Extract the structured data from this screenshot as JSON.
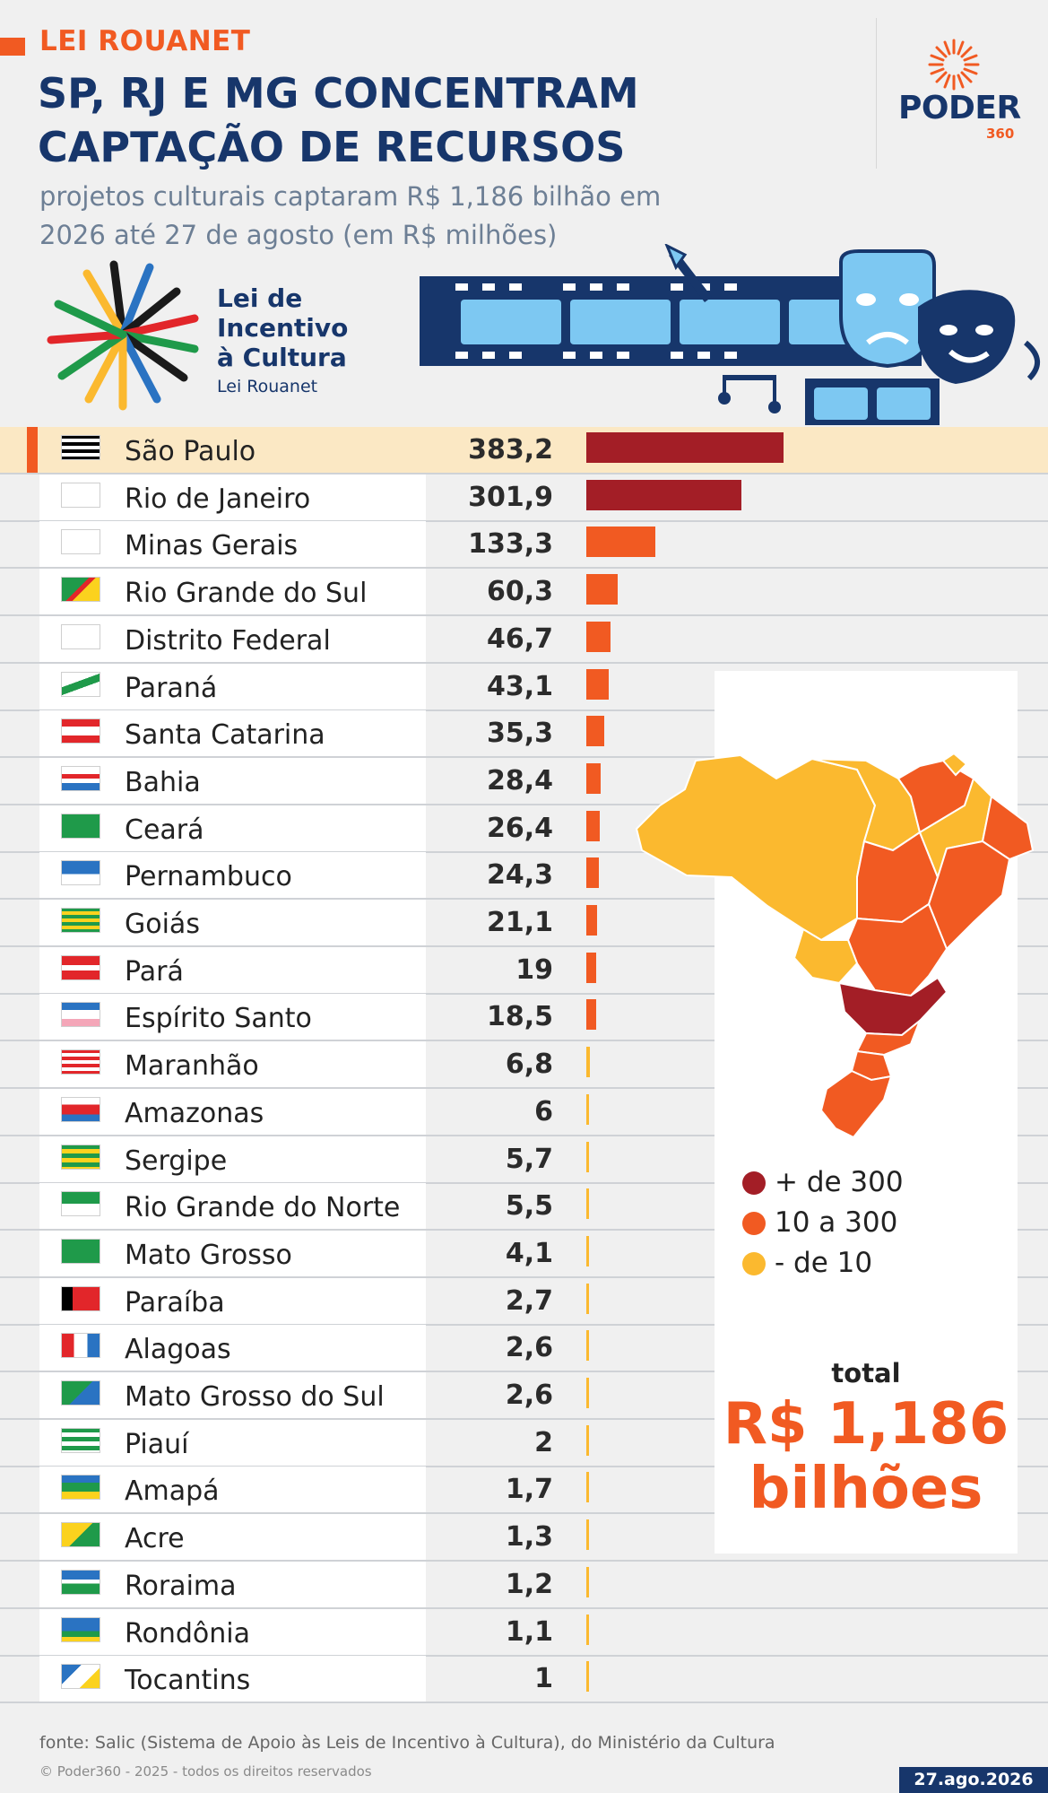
{
  "header": {
    "kicker": "LEI ROUANET",
    "title": "SP, RJ E MG CONCENTRAM CAPTAÇÃO DE RECURSOS",
    "subtitle": "projetos culturais captaram R$ 1,186 bilhão em 2026 até 27 de agosto (em R$ milhões)"
  },
  "logo": {
    "name": "PODER",
    "sub": "360"
  },
  "program_logo": {
    "title": "Lei de Incentivo à Cultura",
    "subtitle": "Lei Rouanet"
  },
  "colors": {
    "title": "#17366b",
    "accent": "#f15a22",
    "high": "#a31e26",
    "mid": "#f15a22",
    "low": "#fbb92f",
    "highlight_row": "#fbe8c4"
  },
  "icons": [
    "poder360-sunburst-icon",
    "lei-incentivo-logo-icon",
    "film-strip-theater-masks-illustration",
    "state-flag-icon",
    "brazil-map"
  ],
  "legend": [
    {
      "label": "+ de 300",
      "color": "#a31e26"
    },
    {
      "label": "10 a 300",
      "color": "#f15a22"
    },
    {
      "label": "- de 10",
      "color": "#fbb92f"
    }
  ],
  "total": {
    "label": "total",
    "value": "R$ 1,186 bilhões"
  },
  "chart_data": {
    "type": "bar",
    "orientation": "horizontal",
    "unit": "R$ milhões",
    "categories": [
      "São Paulo",
      "Rio de Janeiro",
      "Minas Gerais",
      "Rio Grande do Sul",
      "Distrito Federal",
      "Paraná",
      "Santa Catarina",
      "Bahia",
      "Ceará",
      "Pernambuco",
      "Goiás",
      "Pará",
      "Espírito Santo",
      "Maranhão",
      "Amazonas",
      "Sergipe",
      "Rio Grande do Norte",
      "Mato Grosso",
      "Paraíba",
      "Alagoas",
      "Mato Grosso do Sul",
      "Piauí",
      "Amapá",
      "Acre",
      "Roraima",
      "Rondônia",
      "Tocantins"
    ],
    "values": [
      383.2,
      301.9,
      133.3,
      60.3,
      46.7,
      43.1,
      35.3,
      28.4,
      26.4,
      24.3,
      21.1,
      19,
      18.5,
      6.8,
      6,
      5.7,
      5.5,
      4.1,
      2.7,
      2.6,
      2.6,
      2,
      1.7,
      1.3,
      1.2,
      1.1,
      1
    ],
    "labels": [
      "383,2",
      "301,9",
      "133,3",
      "60,3",
      "46,7",
      "43,1",
      "35,3",
      "28,4",
      "26,4",
      "24,3",
      "21,1",
      "19",
      "18,5",
      "6,8",
      "6",
      "5,7",
      "5,5",
      "4,1",
      "2,7",
      "2,6",
      "2,6",
      "2",
      "1,7",
      "1,3",
      "1,2",
      "1,1",
      "1"
    ],
    "highlight": "São Paulo",
    "color_scale": [
      {
        "min": 300,
        "color": "#a31e26"
      },
      {
        "min": 10,
        "color": "#f15a22"
      },
      {
        "min": 0,
        "color": "#fbb92f"
      }
    ],
    "legend_position": "right"
  },
  "footer": {
    "source": "fonte: Salic (Sistema de Apoio às Leis de Incentivo à Cultura), do Ministério da Cultura",
    "copyright": "© Poder360 - 2025 - todos os direitos reservados",
    "date": "27.ago.2026"
  }
}
